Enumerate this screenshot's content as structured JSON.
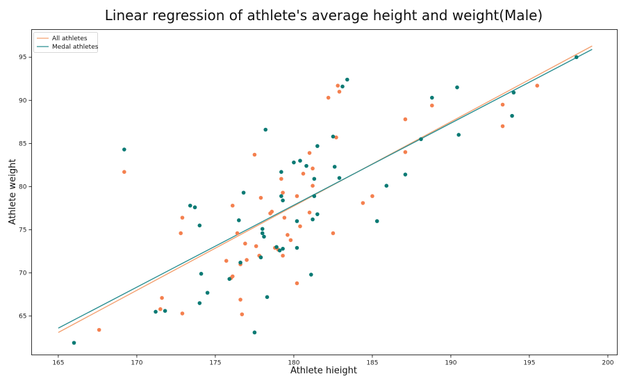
{
  "chart_data": {
    "type": "scatter",
    "title": "Linear regression of athlete's average height and weight(Male)",
    "xlabel": "Athlete hieight",
    "ylabel": "Athlete weight",
    "xlim": [
      163.3,
      200.6
    ],
    "ylim": [
      60.5,
      98.2
    ],
    "xticks": [
      165,
      170,
      175,
      180,
      185,
      190,
      195,
      200
    ],
    "yticks": [
      65,
      70,
      75,
      80,
      85,
      90,
      95
    ],
    "grid": false,
    "legend_position": "top-left",
    "series": [
      {
        "name": "All athletes",
        "color": "#f4804f",
        "line_color": "#f4a070",
        "fit": {
          "x": [
            165,
            199
          ],
          "y": [
            63.1,
            96.3
          ]
        },
        "points": [
          [
            167.6,
            63.4
          ],
          [
            169.2,
            81.7
          ],
          [
            171.5,
            65.8
          ],
          [
            171.6,
            67.1
          ],
          [
            172.8,
            74.6
          ],
          [
            172.9,
            76.4
          ],
          [
            172.9,
            65.3
          ],
          [
            175.7,
            71.4
          ],
          [
            176.0,
            69.4
          ],
          [
            176.1,
            69.6
          ],
          [
            176.1,
            77.8
          ],
          [
            176.4,
            74.6
          ],
          [
            176.6,
            66.9
          ],
          [
            176.7,
            65.2
          ],
          [
            176.6,
            71.0
          ],
          [
            176.9,
            73.4
          ],
          [
            177.0,
            71.5
          ],
          [
            177.5,
            83.7
          ],
          [
            177.6,
            73.1
          ],
          [
            177.8,
            72.0
          ],
          [
            177.9,
            78.7
          ],
          [
            178.5,
            76.9
          ],
          [
            178.6,
            77.1
          ],
          [
            178.8,
            72.9
          ],
          [
            179.0,
            72.7
          ],
          [
            179.2,
            80.9
          ],
          [
            179.3,
            79.3
          ],
          [
            179.4,
            76.4
          ],
          [
            179.3,
            72.0
          ],
          [
            179.6,
            74.4
          ],
          [
            179.8,
            73.8
          ],
          [
            180.2,
            78.9
          ],
          [
            180.2,
            68.8
          ],
          [
            180.4,
            75.4
          ],
          [
            180.6,
            81.5
          ],
          [
            181.0,
            77.0
          ],
          [
            181.0,
            83.9
          ],
          [
            181.2,
            82.1
          ],
          [
            181.2,
            80.1
          ],
          [
            182.2,
            90.3
          ],
          [
            182.5,
            74.6
          ],
          [
            182.7,
            85.7
          ],
          [
            182.8,
            91.7
          ],
          [
            182.9,
            91.0
          ],
          [
            184.4,
            78.1
          ],
          [
            185.0,
            78.9
          ],
          [
            187.1,
            84.0
          ],
          [
            187.1,
            87.8
          ],
          [
            188.8,
            89.4
          ],
          [
            193.3,
            87.0
          ],
          [
            193.3,
            89.5
          ],
          [
            195.5,
            91.7
          ]
        ]
      },
      {
        "name": "Medal athletes",
        "color": "#0a7a74",
        "line_color": "#2a8f92",
        "fit": {
          "x": [
            165,
            199
          ],
          "y": [
            63.6,
            95.9
          ]
        },
        "points": [
          [
            166.0,
            61.9
          ],
          [
            169.2,
            84.3
          ],
          [
            171.2,
            65.5
          ],
          [
            171.8,
            65.6
          ],
          [
            173.4,
            77.8
          ],
          [
            173.7,
            77.6
          ],
          [
            174.0,
            75.5
          ],
          [
            174.0,
            66.5
          ],
          [
            174.1,
            69.9
          ],
          [
            174.5,
            67.7
          ],
          [
            175.9,
            69.3
          ],
          [
            176.5,
            76.1
          ],
          [
            176.6,
            71.2
          ],
          [
            176.8,
            79.3
          ],
          [
            177.5,
            63.1
          ],
          [
            177.9,
            71.8
          ],
          [
            178.0,
            75.1
          ],
          [
            178.0,
            74.6
          ],
          [
            178.1,
            74.2
          ],
          [
            178.2,
            86.6
          ],
          [
            178.3,
            67.2
          ],
          [
            178.9,
            73.0
          ],
          [
            179.1,
            72.6
          ],
          [
            179.2,
            78.9
          ],
          [
            179.2,
            81.7
          ],
          [
            179.3,
            78.4
          ],
          [
            179.3,
            72.8
          ],
          [
            180.0,
            82.8
          ],
          [
            180.2,
            76.0
          ],
          [
            180.2,
            72.9
          ],
          [
            180.4,
            83.0
          ],
          [
            180.8,
            82.4
          ],
          [
            181.1,
            69.8
          ],
          [
            181.2,
            76.2
          ],
          [
            181.3,
            78.9
          ],
          [
            181.3,
            80.9
          ],
          [
            181.5,
            84.7
          ],
          [
            181.5,
            76.8
          ],
          [
            182.5,
            85.8
          ],
          [
            182.6,
            82.3
          ],
          [
            182.9,
            81.0
          ],
          [
            183.1,
            91.6
          ],
          [
            183.4,
            92.4
          ],
          [
            185.3,
            76.0
          ],
          [
            185.9,
            80.1
          ],
          [
            187.1,
            81.4
          ],
          [
            188.1,
            85.5
          ],
          [
            188.8,
            90.3
          ],
          [
            190.4,
            91.5
          ],
          [
            190.5,
            86.0
          ],
          [
            193.9,
            88.2
          ],
          [
            194.0,
            90.9
          ],
          [
            198.0,
            95.0
          ]
        ]
      }
    ]
  }
}
